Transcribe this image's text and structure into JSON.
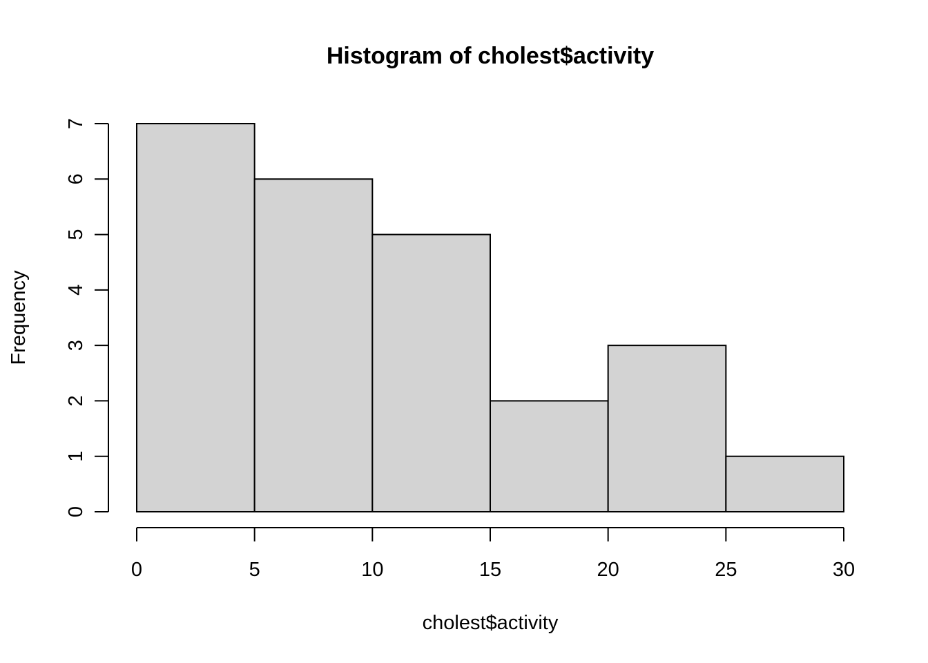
{
  "chart_data": {
    "type": "bar",
    "title": "Histogram of cholest$activity",
    "xlabel": "cholest$activity",
    "ylabel": "Frequency",
    "bins": [
      {
        "start": 0,
        "end": 5,
        "count": 7
      },
      {
        "start": 5,
        "end": 10,
        "count": 6
      },
      {
        "start": 10,
        "end": 15,
        "count": 5
      },
      {
        "start": 15,
        "end": 20,
        "count": 2
      },
      {
        "start": 20,
        "end": 25,
        "count": 3
      },
      {
        "start": 25,
        "end": 30,
        "count": 1
      }
    ],
    "xlim": [
      0,
      30
    ],
    "ylim": [
      0,
      7
    ],
    "x_ticks": [
      "0",
      "5",
      "10",
      "15",
      "20",
      "25",
      "30"
    ],
    "y_ticks": [
      "0",
      "1",
      "2",
      "3",
      "4",
      "5",
      "6",
      "7"
    ],
    "bar_color": "#d3d3d3",
    "edge_color": "#000000",
    "grid": false,
    "legend": "none"
  }
}
